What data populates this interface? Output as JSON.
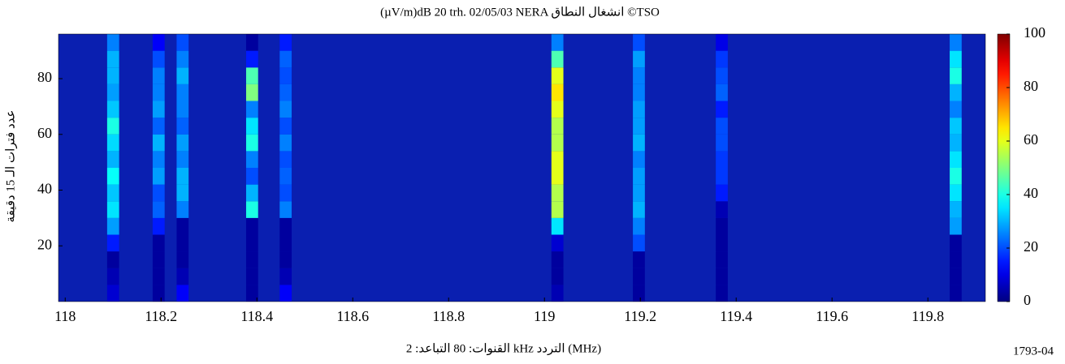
{
  "chart_data": {
    "type": "heatmap",
    "title": "(µV/m)dB 20 trh. 02/05/03 NERA انشغال النطاق ©TSO",
    "x_label": "القنوات: 80    التباعد: 2 kHz    التردد (MHz)",
    "y_label": "عدد فترات الـ 15 دقيقة",
    "note": "1793-04",
    "x": [
      118.1,
      118.195,
      118.245,
      118.39,
      118.46,
      119.027,
      119.197,
      119.37,
      119.858
    ],
    "cell_width": 0.025,
    "y_bins": [
      0,
      6,
      12,
      18,
      24,
      30,
      36,
      42,
      48,
      54,
      60,
      66,
      72,
      78,
      84,
      90,
      96
    ],
    "values": [
      [
        8,
        5,
        3,
        15,
        28,
        35,
        32,
        38,
        30,
        34,
        40,
        32,
        28,
        30,
        30,
        25
      ],
      [
        3,
        3,
        3,
        3,
        15,
        22,
        20,
        28,
        25,
        30,
        22,
        28,
        25,
        25,
        20,
        12
      ],
      [
        12,
        5,
        3,
        3,
        3,
        25,
        30,
        30,
        25,
        28,
        22,
        25,
        25,
        30,
        25,
        20
      ],
      [
        3,
        3,
        3,
        3,
        3,
        40,
        30,
        20,
        25,
        40,
        35,
        25,
        50,
        45,
        15,
        3
      ],
      [
        12,
        5,
        3,
        3,
        3,
        25,
        20,
        22,
        20,
        25,
        20,
        25,
        22,
        20,
        22,
        15
      ],
      [
        5,
        3,
        3,
        8,
        35,
        55,
        55,
        60,
        60,
        55,
        55,
        60,
        65,
        60,
        45,
        25
      ],
      [
        3,
        3,
        3,
        20,
        25,
        30,
        28,
        28,
        25,
        30,
        28,
        28,
        25,
        25,
        28,
        20
      ],
      [
        3,
        3,
        3,
        3,
        3,
        5,
        15,
        18,
        18,
        20,
        20,
        15,
        22,
        20,
        18,
        10
      ],
      [
        3,
        3,
        3,
        3,
        28,
        30,
        35,
        40,
        35,
        30,
        32,
        25,
        30,
        40,
        35,
        25
      ]
    ],
    "colormap": "jet",
    "xlim": [
      117.986,
      119.92
    ],
    "xticks": [
      118,
      118.2,
      118.4,
      118.6,
      118.8,
      119,
      119.2,
      119.4,
      119.6,
      119.8
    ],
    "ylim": [
      0,
      96
    ],
    "yticks": [
      20,
      40,
      60,
      80
    ],
    "clim": [
      0,
      100
    ],
    "cticks": [
      0,
      20,
      40,
      60,
      80,
      100
    ]
  }
}
